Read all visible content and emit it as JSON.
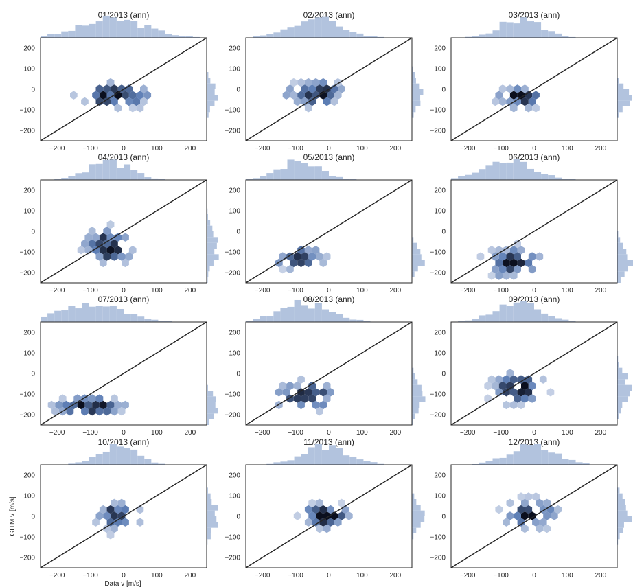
{
  "figure": {
    "ylabel": "GITM v [m/s]",
    "xlabel": "Data v [m/s]"
  },
  "chart_data": {
    "type": "hexbin-jointplot-grid",
    "colors": {
      "hex_dark": "#0b0f1e",
      "hex_light": "#e3e8f3",
      "hist": "#b2c3de",
      "line": "#262626",
      "frame": "#262626"
    },
    "xlim": [
      -250,
      250
    ],
    "ylim": [
      -250,
      250
    ],
    "xticks": [
      -200,
      -100,
      0,
      100,
      200
    ],
    "yticks": [
      -200,
      -100,
      0,
      100,
      200
    ],
    "reference_line": "y = x",
    "panels": [
      {
        "title": "01/2013 (ann)",
        "cx": -30,
        "cy": -30,
        "sx": 70,
        "sy": 38,
        "yh": [
          -1,
          0,
          2,
          7,
          3,
          1,
          0
        ]
      },
      {
        "title": "02/2013 (ann)",
        "cx": -40,
        "cy": -20,
        "sx": 55,
        "sy": 40,
        "yh": [
          0,
          0,
          1,
          4,
          3,
          1,
          0
        ]
      },
      {
        "title": "03/2013 (ann)",
        "cx": -40,
        "cy": -40,
        "sx": 45,
        "sy": 32,
        "yh": [
          0,
          0,
          1,
          6,
          3,
          1,
          0
        ]
      },
      {
        "title": "04/2013 (ann)",
        "cx": -45,
        "cy": -70,
        "sx": 45,
        "sy": 55,
        "yh": [
          0,
          1,
          3,
          4,
          1,
          0,
          0
        ]
      },
      {
        "title": "05/2013 (ann)",
        "cx": -90,
        "cy": -130,
        "sx": 45,
        "sy": 35,
        "yh": [
          0,
          1,
          4,
          3,
          1,
          0,
          0
        ]
      },
      {
        "title": "06/2013 (ann)",
        "cx": -75,
        "cy": -150,
        "sx": 55,
        "sy": 45,
        "yh": [
          1,
          3,
          4,
          1,
          0,
          0,
          0
        ]
      },
      {
        "title": "07/2013 (ann)",
        "cx": -100,
        "cy": -160,
        "sx": 65,
        "sy": 35,
        "yh": [
          1,
          4,
          5,
          1,
          0,
          0,
          0
        ]
      },
      {
        "title": "08/2013 (ann)",
        "cx": -70,
        "cy": -110,
        "sx": 55,
        "sy": 45,
        "yh": [
          1,
          3,
          5,
          2,
          1,
          0,
          0
        ]
      },
      {
        "title": "09/2013 (ann)",
        "cx": -50,
        "cy": -70,
        "sx": 50,
        "sy": 50,
        "yh": [
          0,
          1,
          3,
          4,
          2,
          1,
          0
        ]
      },
      {
        "title": "10/2013 (ann)",
        "cx": -20,
        "cy": 0,
        "sx": 40,
        "sy": 45,
        "yh": [
          0,
          1,
          2,
          4,
          3,
          1,
          0
        ]
      },
      {
        "title": "11/2013 (ann)",
        "cx": -10,
        "cy": 0,
        "sx": 50,
        "sy": 38,
        "yh": [
          0,
          0,
          1,
          4,
          3,
          1,
          0
        ]
      },
      {
        "title": "12/2013 (ann)",
        "cx": -5,
        "cy": 10,
        "sx": 50,
        "sy": 45,
        "yh": [
          0,
          1,
          2,
          4,
          4,
          2,
          0
        ]
      }
    ]
  }
}
